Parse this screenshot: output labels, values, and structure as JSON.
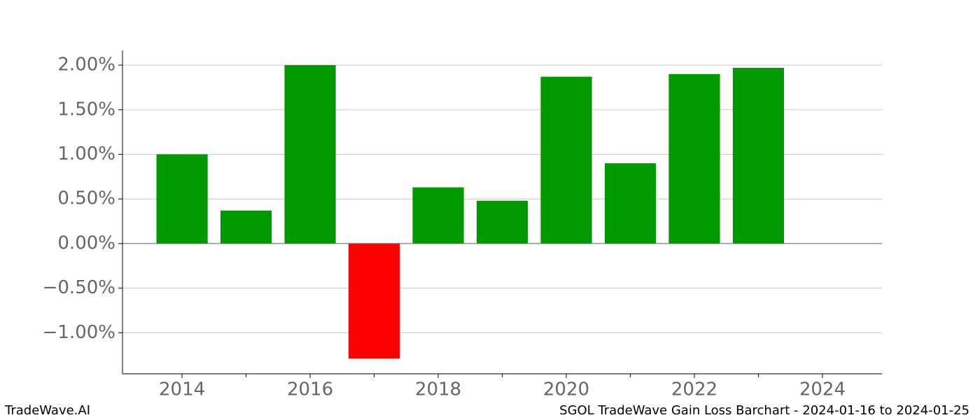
{
  "chart_data": {
    "type": "bar",
    "x": [
      2014,
      2015,
      2016,
      2017,
      2018,
      2019,
      2020,
      2021,
      2022,
      2023
    ],
    "values": [
      1.0,
      0.37,
      2.0,
      -1.29,
      0.63,
      0.48,
      1.87,
      0.9,
      1.9,
      1.97
    ],
    "positive_color": "#009900",
    "negative_color": "#ff0000",
    "xlim": [
      2013.07,
      2024.93
    ],
    "xticks": [
      2014,
      2016,
      2018,
      2020,
      2022,
      2024
    ],
    "xticks_minor": [
      2015,
      2017,
      2019,
      2021,
      2023
    ],
    "ylim": [
      -1.46,
      2.165
    ],
    "yticks": [
      {
        "value": -1.0,
        "label": "−1.00%"
      },
      {
        "value": -0.5,
        "label": "−0.50%"
      },
      {
        "value": 0,
        "label": "0.00%"
      },
      {
        "value": 0.5,
        "label": "0.50%"
      },
      {
        "value": 1.0,
        "label": "1.00%"
      },
      {
        "value": 1.5,
        "label": "1.50%"
      },
      {
        "value": 2.0,
        "label": "2.00%"
      }
    ],
    "grid": true
  },
  "footer": {
    "left": "TradeWave.AI",
    "right": "SGOL TradeWave Gain Loss Barchart - 2024-01-16 to 2024-01-25"
  }
}
